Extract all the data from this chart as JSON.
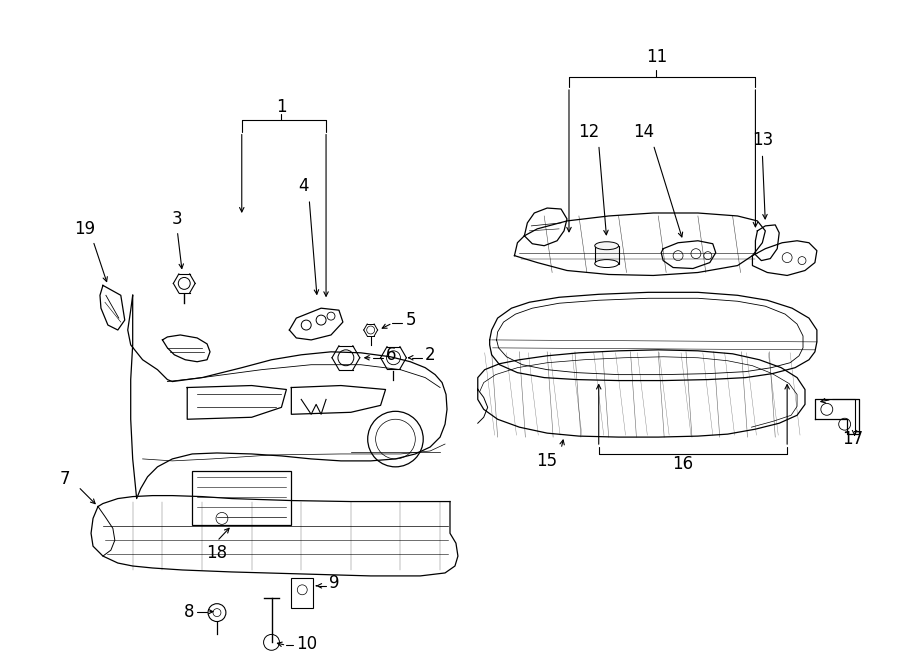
{
  "background_color": "#ffffff",
  "line_color": "#000000",
  "fig_width": 9.0,
  "fig_height": 6.61,
  "dpi": 100,
  "fontsize": 12,
  "lw": 0.9
}
